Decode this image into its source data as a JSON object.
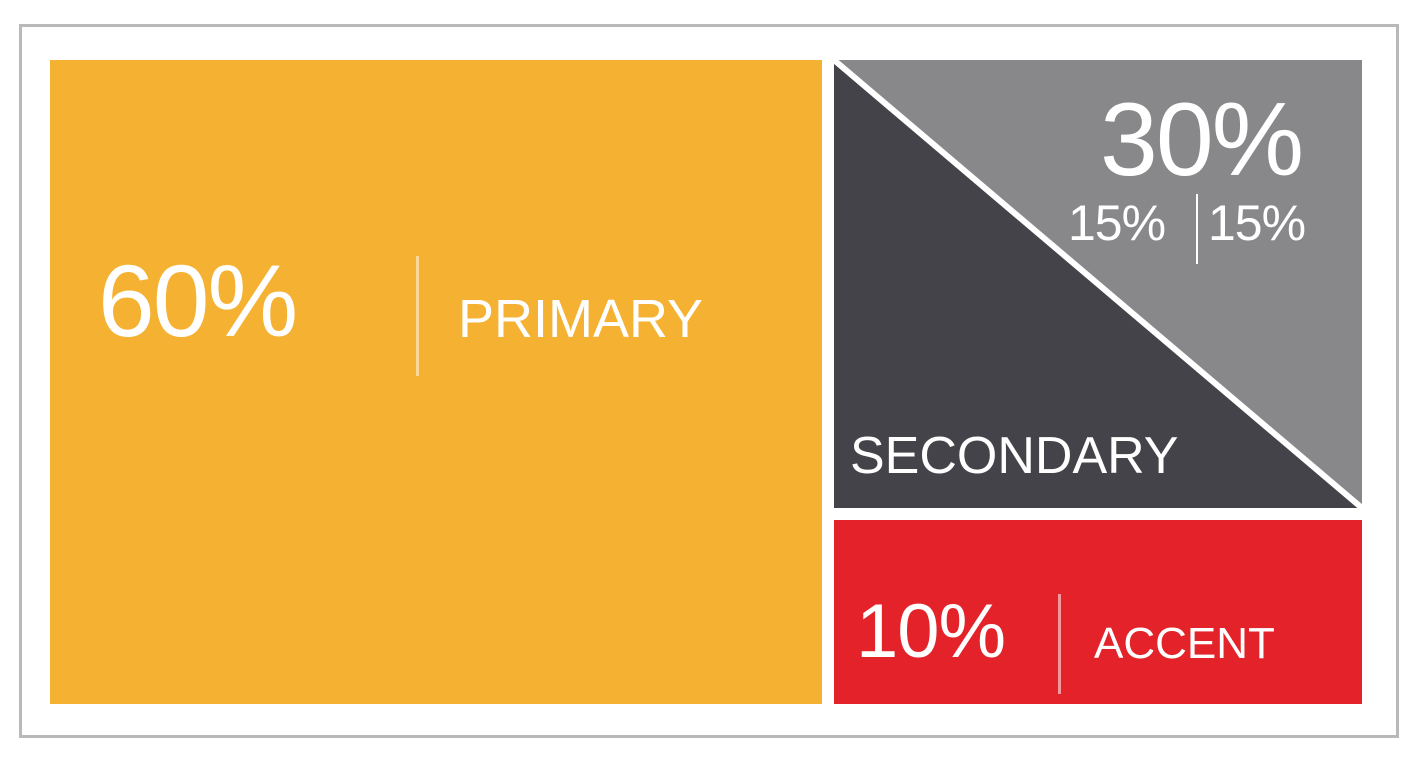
{
  "colors": {
    "primary": "#F5B131",
    "secondary_dark": "#44434A",
    "secondary_light": "#88888A",
    "accent": "#E32329",
    "border": "#B9B9B9",
    "text": "#FFFFFF"
  },
  "primary": {
    "percent": "60%",
    "label": "PRIMARY",
    "value": 60
  },
  "secondary": {
    "percent": "30%",
    "split_left": "15%",
    "split_right": "15%",
    "label": "SECONDARY",
    "value": 30
  },
  "accent": {
    "percent": "10%",
    "label": "ACCENT",
    "value": 10
  }
}
